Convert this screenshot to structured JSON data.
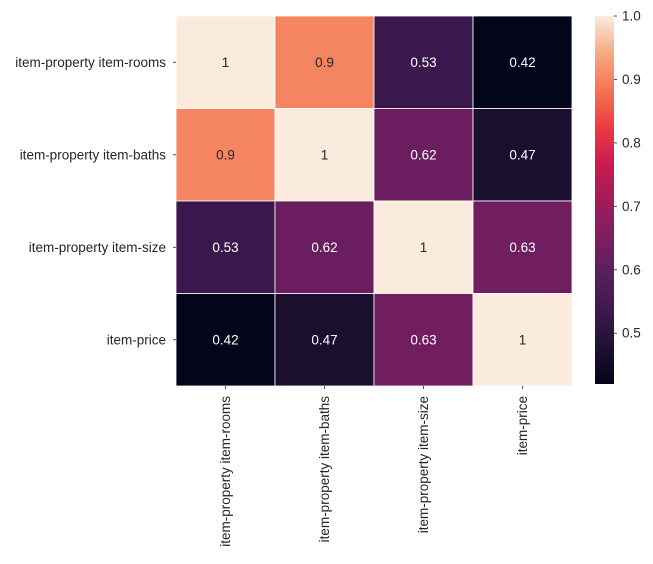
{
  "chart_data": {
    "type": "heatmap",
    "title": "",
    "xlabel": "",
    "ylabel": "",
    "rows": [
      "item-property item-rooms",
      "item-property item-baths",
      "item-property item-size",
      "item-price"
    ],
    "columns": [
      "item-property item-rooms",
      "item-property item-baths",
      "item-property item-size",
      "item-price"
    ],
    "values": [
      [
        1,
        0.9,
        0.53,
        0.42
      ],
      [
        0.9,
        1,
        0.62,
        0.47
      ],
      [
        0.53,
        0.62,
        1,
        0.63
      ],
      [
        0.42,
        0.47,
        0.63,
        1
      ]
    ],
    "cell_labels": [
      [
        "1",
        "0.9",
        "0.53",
        "0.42"
      ],
      [
        "0.9",
        "1",
        "0.62",
        "0.47"
      ],
      [
        "0.53",
        "0.62",
        "1",
        "0.63"
      ],
      [
        "0.42",
        "0.47",
        "0.63",
        "1"
      ]
    ],
    "colorbar": {
      "range": [
        0.42,
        1.0
      ],
      "ticks": [
        0.5,
        0.6,
        0.7,
        0.8,
        0.9,
        1.0
      ],
      "tick_labels": [
        "0.5",
        "0.6",
        "0.7",
        "0.8",
        "0.9",
        "1.0"
      ],
      "colormap": "rocket"
    },
    "colors": {
      "gridline": "#ffffff",
      "axis_text": "#262626",
      "cell_text_dark": "#262626",
      "cell_text_light": "#ffffff"
    }
  }
}
